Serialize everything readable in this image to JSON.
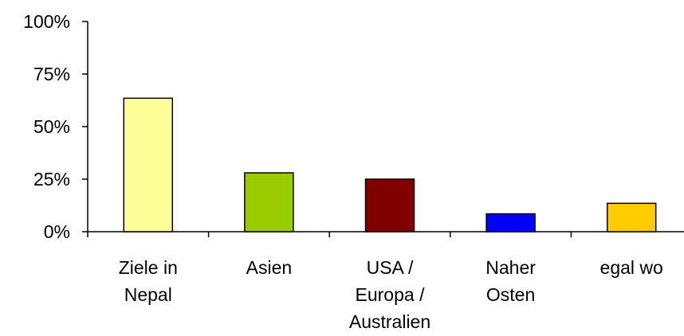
{
  "chart_data": {
    "type": "bar",
    "categories": [
      [
        "Ziele in",
        "Nepal"
      ],
      [
        "Asien"
      ],
      [
        "USA /",
        "Europa /",
        "Australien"
      ],
      [
        "Naher",
        "Osten"
      ],
      [
        "egal wo"
      ]
    ],
    "values": [
      63.5,
      28,
      25,
      8.5,
      13.5
    ],
    "unit": "%",
    "colors": [
      "#FFFF99",
      "#99CC00",
      "#800000",
      "#0000FF",
      "#FFCC00"
    ],
    "ylim": [
      0,
      100
    ],
    "yticks": [
      0,
      25,
      50,
      75,
      100
    ],
    "ytick_labels": [
      "0%",
      "25%",
      "50%",
      "75%",
      "100%"
    ],
    "grid": false,
    "legend": "none",
    "title": "",
    "xlabel": "",
    "ylabel": ""
  }
}
